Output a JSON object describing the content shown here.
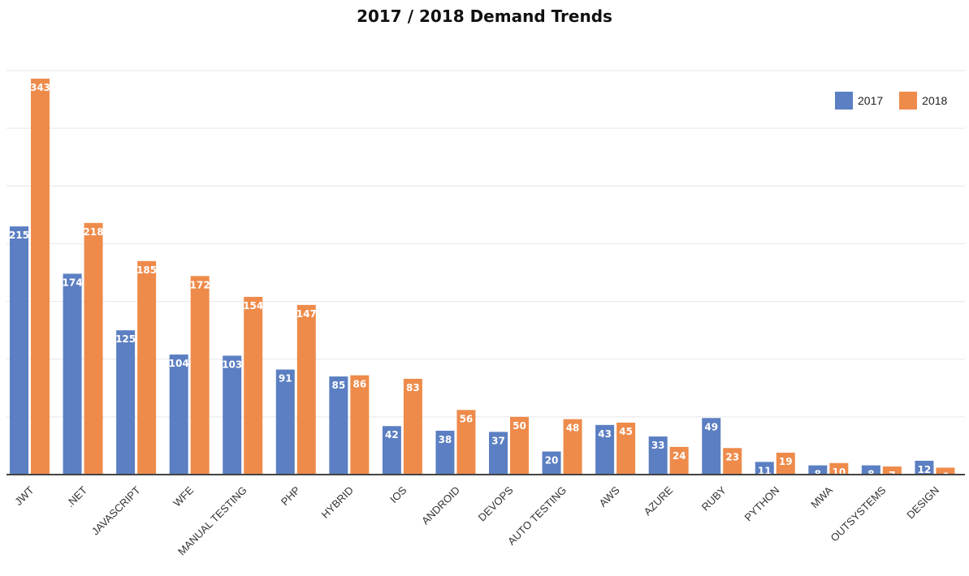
{
  "chart_data": {
    "type": "bar",
    "title": "2017 / 2018 Demand Trends",
    "xlabel": "",
    "ylabel": "",
    "ylim": [
      0,
      350
    ],
    "grid": true,
    "legend_position": "top-right",
    "categories": [
      "JWT",
      ".NET",
      "JAVASCRIPT",
      "WFE",
      "MANUAL TESTING",
      "PHP",
      "HYBRID",
      "IOS",
      "ANDROID",
      "DEVOPS",
      "AUTO TESTING",
      "AWS",
      "AZURE",
      "RUBY",
      "PYTHON",
      "MWA",
      "OUTSYSTEMS",
      "DESIGN"
    ],
    "series": [
      {
        "name": "2017",
        "color": "#5B7FC2",
        "values": [
          215,
          174,
          125,
          104,
          103,
          91,
          85,
          42,
          38,
          37,
          20,
          43,
          33,
          49,
          11,
          8,
          8,
          12
        ]
      },
      {
        "name": "2018",
        "color": "#EE8B4B",
        "values": [
          343,
          218,
          185,
          172,
          154,
          147,
          86,
          83,
          56,
          50,
          48,
          45,
          24,
          23,
          19,
          10,
          7,
          6
        ]
      }
    ]
  }
}
